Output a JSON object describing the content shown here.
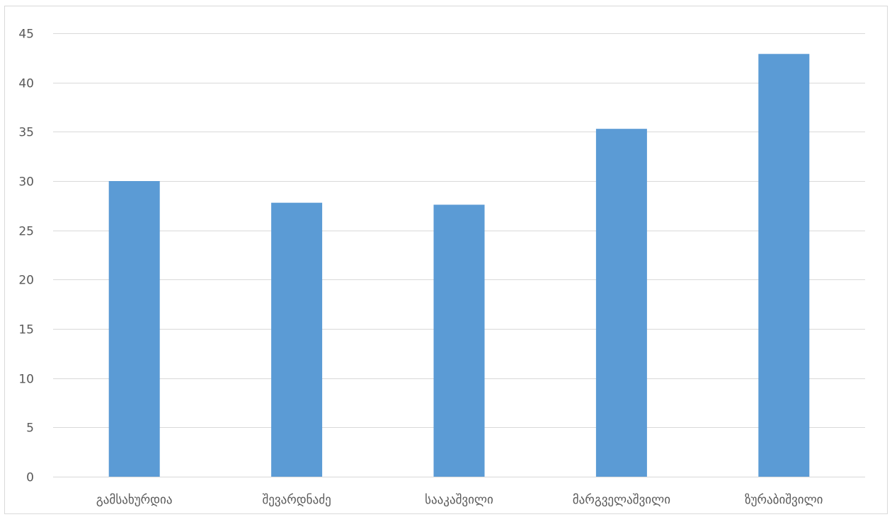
{
  "chart_data": {
    "type": "bar",
    "title": "",
    "xlabel": "",
    "ylabel": "",
    "categories": [
      "გამსახურდია",
      "შევარდნაძე",
      "სააკაშვილი",
      "მარგველაშვილი",
      "ზურაბიშვილი"
    ],
    "values": [
      30,
      27.8,
      27.6,
      35.3,
      42.9
    ],
    "ylim": [
      0,
      45
    ],
    "yticks": [
      0,
      5,
      10,
      15,
      20,
      25,
      30,
      35,
      40,
      45
    ],
    "ytick_labels": [
      "0",
      "5",
      "10",
      "15",
      "20",
      "25",
      "30",
      "35",
      "40",
      "45"
    ],
    "grid": true,
    "legend": "none",
    "bar_color": "#5b9bd5",
    "grid_color": "#d9d9d9"
  }
}
